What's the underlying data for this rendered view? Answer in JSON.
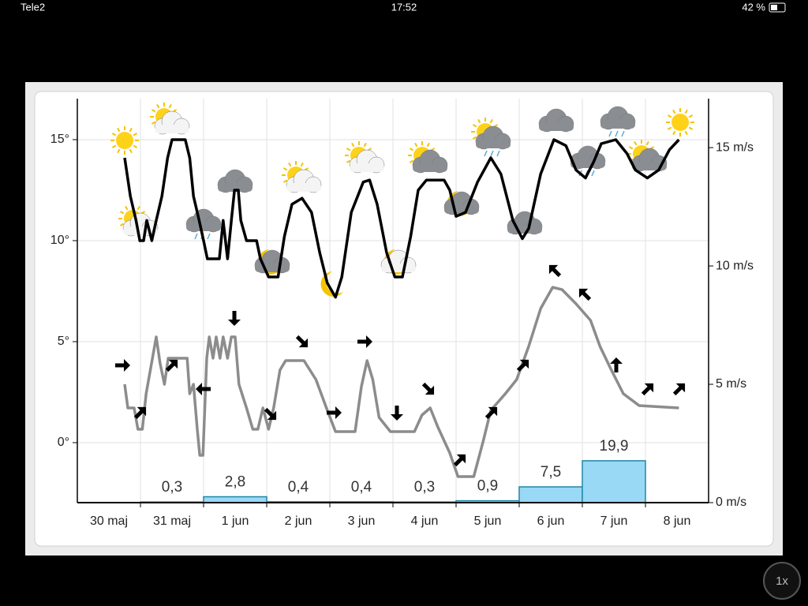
{
  "status_bar": {
    "carrier": "Tele2",
    "time": "17:52",
    "battery": "42 %"
  },
  "zoom_button": "1x",
  "chart_data": {
    "type": "line",
    "categories": [
      "30 maj",
      "31 maj",
      "1 jun",
      "2 jun",
      "3 jun",
      "4 jun",
      "5 jun",
      "6 jun",
      "7 jun",
      "8 jun"
    ],
    "xlim": [
      0,
      10
    ],
    "xticks": [
      1,
      2,
      3,
      4,
      5,
      6,
      7,
      8,
      9
    ],
    "ylim": [
      -2.97,
      17.03
    ],
    "yticks": [
      {
        "value": 0,
        "label": "0°"
      },
      {
        "value": 5,
        "label": "5°"
      },
      {
        "value": 10,
        "label": "10°"
      },
      {
        "value": 15,
        "label": "15°"
      }
    ],
    "y2lim": [
      0,
      17.07
    ],
    "y2ticks": [
      {
        "value": 0,
        "label": "0 m/s"
      },
      {
        "value": 5,
        "label": "5 m/s"
      },
      {
        "value": 10,
        "label": "10 m/s"
      },
      {
        "value": 15,
        "label": "15 m/s"
      }
    ],
    "y3lim": [
      0,
      192
    ],
    "grid": true,
    "series": [
      {
        "color": "#000000",
        "axis": "y",
        "x": [
          0.75,
          0.84,
          0.93,
          0.99,
          1.05,
          1.1,
          1.18,
          1.25,
          1.34,
          1.43,
          1.5,
          1.71,
          1.78,
          1.84,
          1.93,
          2.0,
          2.06,
          2.25,
          2.31,
          2.38,
          2.44,
          2.49,
          2.55,
          2.59,
          2.68,
          2.84,
          2.9,
          3.03,
          3.18,
          3.28,
          3.4,
          3.56,
          3.71,
          3.84,
          3.96,
          4.09,
          4.19,
          4.34,
          4.53,
          4.63,
          4.75,
          4.9,
          5.03,
          5.15,
          5.28,
          5.4,
          5.53,
          5.81,
          5.9,
          6.0,
          6.15,
          6.34,
          6.55,
          6.71,
          6.9,
          7.05,
          7.15,
          7.34,
          7.55,
          7.74,
          7.9,
          8.05,
          8.18,
          8.3,
          8.53,
          8.71,
          8.84,
          9.03,
          9.21,
          9.38,
          9.53
        ],
        "values": [
          14.1,
          12.2,
          11.0,
          10.0,
          10.0,
          11.0,
          10.0,
          11.0,
          12.2,
          14.1,
          15.0,
          15.0,
          14.1,
          12.2,
          11.0,
          10.0,
          9.1,
          9.1,
          11.0,
          9.1,
          11.0,
          12.5,
          12.5,
          11.0,
          10.0,
          10.0,
          9.1,
          8.2,
          8.2,
          10.2,
          11.8,
          12.1,
          11.4,
          9.4,
          7.9,
          7.2,
          8.2,
          11.4,
          12.9,
          13.0,
          11.8,
          9.4,
          8.2,
          8.2,
          10.2,
          12.5,
          13.0,
          13.0,
          12.5,
          11.2,
          11.4,
          12.9,
          14.1,
          13.3,
          11.0,
          10.1,
          10.6,
          13.3,
          15.0,
          14.7,
          13.5,
          13.1,
          13.9,
          14.8,
          15.0,
          14.3,
          13.5,
          13.1,
          13.5,
          14.5,
          15.0
        ]
      },
      {
        "color": "#8c8c8c",
        "axis": "y2",
        "x": [
          0.75,
          0.8,
          0.9,
          0.96,
          1.03,
          1.09,
          1.19,
          1.25,
          1.31,
          1.38,
          1.44,
          1.53,
          1.65,
          1.74,
          1.78,
          1.84,
          1.9,
          1.94,
          1.99,
          2.05,
          2.09,
          2.15,
          2.2,
          2.26,
          2.31,
          2.38,
          2.44,
          2.5,
          2.56,
          2.68,
          2.78,
          2.86,
          2.94,
          3.03,
          3.11,
          3.21,
          3.3,
          3.59,
          3.78,
          3.96,
          4.09,
          4.4,
          4.5,
          4.59,
          4.68,
          4.78,
          4.96,
          5.34,
          5.46,
          5.59,
          5.71,
          5.9,
          6.03,
          6.28,
          6.43,
          6.55,
          6.78,
          6.96,
          7.15,
          7.34,
          7.53,
          7.68,
          7.9,
          8.13,
          8.28,
          8.46,
          8.65,
          8.9,
          9.53
        ],
        "values": [
          5.0,
          4.0,
          4.0,
          3.1,
          3.1,
          4.6,
          6.1,
          7.0,
          5.9,
          5.0,
          6.1,
          6.1,
          6.1,
          6.1,
          4.6,
          5.0,
          3.1,
          2.0,
          2.0,
          6.1,
          7.0,
          6.1,
          7.0,
          6.1,
          7.0,
          6.1,
          7.0,
          7.0,
          5.0,
          4.0,
          3.1,
          3.1,
          4.0,
          3.1,
          4.0,
          5.6,
          6.0,
          6.0,
          5.2,
          3.9,
          3.0,
          3.0,
          4.9,
          6.0,
          5.2,
          3.6,
          3.0,
          3.0,
          3.7,
          4.0,
          3.2,
          2.1,
          1.1,
          1.1,
          2.6,
          3.9,
          4.6,
          5.2,
          6.6,
          8.2,
          9.1,
          9.0,
          8.4,
          7.7,
          6.6,
          5.6,
          4.6,
          4.1,
          4.0
        ]
      },
      {
        "type": "bar",
        "color": "#9ad9f5",
        "axis": "y3",
        "x": [
          1,
          2,
          3,
          4,
          5,
          6,
          7,
          8
        ],
        "values": [
          0.3,
          2.8,
          0.4,
          0.4,
          0.3,
          0.9,
          7.5,
          19.9
        ],
        "value_labels": [
          "0,3",
          "2,8",
          "0,4",
          "0,4",
          "0,3",
          "0,9",
          "7,5",
          "19,9"
        ]
      }
    ]
  }
}
